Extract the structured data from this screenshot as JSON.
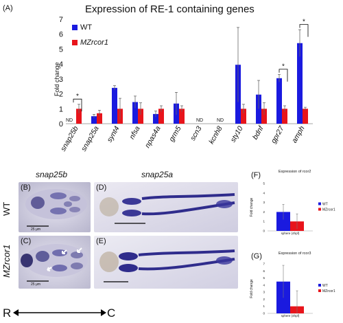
{
  "panel_A": {
    "letter": "(A)",
    "title_prefix": "Expression of RE-1 containing genes",
    "ylabel": "Fold change",
    "legend": [
      {
        "label": "WT",
        "color": "#1a1adf"
      },
      {
        "label": "MZrcor1",
        "color": "#e8141b"
      }
    ],
    "nd_label": "ND",
    "star": "*"
  },
  "panel_micro": {
    "col_left": "snap25b",
    "col_right": "snap25a",
    "row_top": "WT",
    "row_bottom": "MZrcor1",
    "letters": {
      "B": "(B)",
      "C": "(C)",
      "D": "(D)",
      "E": "(E)"
    },
    "scale_label": "25 μm",
    "axis_left": "R",
    "axis_right": "C"
  },
  "panel_F": {
    "letter": "(F)",
    "title": "Expression of rcor2"
  },
  "panel_G": {
    "letter": "(G)",
    "title": "Expression of rcor3"
  },
  "chart_data": [
    {
      "type": "bar",
      "title": "Expression of RE-1 containing genes",
      "ylabel": "Fold change",
      "ylim": [
        0,
        7
      ],
      "yticks": [
        0,
        1,
        2,
        3,
        4,
        5,
        6,
        7
      ],
      "categories": [
        "snap25b",
        "snap25a",
        "synt4",
        "nfsa",
        "npas4a",
        "grm5",
        "scn3",
        "kcnh8",
        "sty10",
        "bdnf",
        "gpr27",
        "amph"
      ],
      "series": [
        {
          "name": "WT",
          "color": "#1a1adf",
          "values": [
            null,
            0.5,
            2.4,
            1.45,
            0.65,
            1.35,
            null,
            null,
            3.95,
            1.95,
            3.05,
            5.4
          ],
          "errors": [
            null,
            0.12,
            0.15,
            0.4,
            0.2,
            0.75,
            null,
            null,
            2.5,
            0.95,
            0.25,
            0.9
          ]
        },
        {
          "name": "MZrcor1",
          "color": "#e8141b",
          "values": [
            1.0,
            0.7,
            1.0,
            1.0,
            1.0,
            1.0,
            null,
            null,
            1.0,
            1.0,
            1.0,
            1.0
          ],
          "errors": [
            0.3,
            0.2,
            0.7,
            0.4,
            0.2,
            0.2,
            null,
            null,
            0.3,
            0.4,
            0.2,
            0.1
          ]
        }
      ],
      "not_detected": [
        "snap25b:WT",
        "scn3",
        "kcnh8"
      ],
      "significance": [
        "snap25b",
        "gpr27",
        "amph"
      ],
      "grid": false,
      "legend_position": "top-left"
    },
    {
      "type": "bar",
      "title": "Expression of rcor2",
      "ylabel": "Fold change",
      "ylim": [
        0,
        5
      ],
      "yticks": [
        0,
        1,
        2,
        3,
        4,
        5
      ],
      "categories": [
        "sphere (4hpf)"
      ],
      "series": [
        {
          "name": "WT",
          "color": "#1a1adf",
          "values": [
            2.0
          ],
          "errors": [
            0.8
          ]
        },
        {
          "name": "MZrcor1",
          "color": "#e8141b",
          "values": [
            1.0
          ],
          "errors": [
            0.8
          ]
        }
      ],
      "grid": false,
      "legend_position": "right"
    },
    {
      "type": "bar",
      "title": "Expression of rcor3",
      "ylabel": "Fold change",
      "ylim": [
        0,
        7
      ],
      "yticks": [
        0,
        1,
        2,
        3,
        4,
        5,
        6,
        7
      ],
      "categories": [
        "sphere (4hpf)"
      ],
      "series": [
        {
          "name": "WT",
          "color": "#1a1adf",
          "values": [
            4.5
          ],
          "errors": [
            2.3
          ]
        },
        {
          "name": "MZrcor1",
          "color": "#e8141b",
          "values": [
            1.0
          ],
          "errors": [
            2.2
          ]
        }
      ],
      "grid": false,
      "legend_position": "right"
    }
  ]
}
